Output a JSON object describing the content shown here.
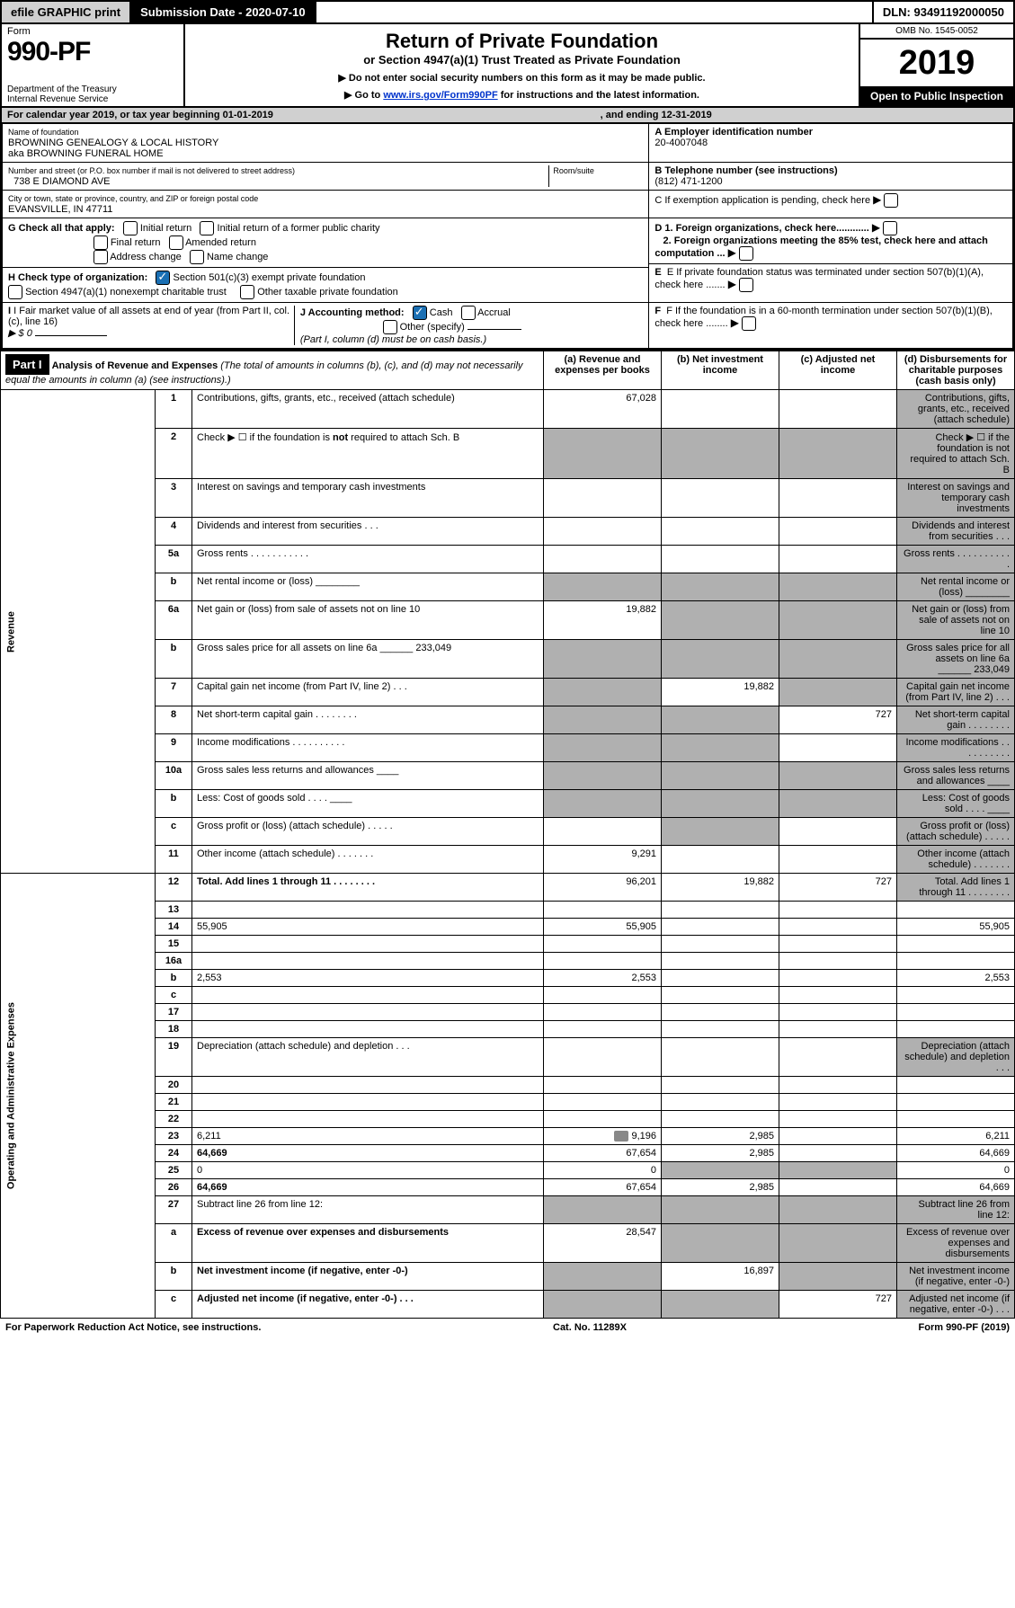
{
  "topbar": {
    "efile": "efile GRAPHIC print",
    "submission_label": "Submission Date - 2020-07-10",
    "dln": "DLN: 93491192000050"
  },
  "header": {
    "form_label": "Form",
    "form_number": "990-PF",
    "dept1": "Department of the Treasury",
    "dept2": "Internal Revenue Service",
    "title": "Return of Private Foundation",
    "subtitle": "or Section 4947(a)(1) Trust Treated as Private Foundation",
    "note1": "▶ Do not enter social security numbers on this form as it may be made public.",
    "note2_prefix": "▶ Go to ",
    "note2_link": "www.irs.gov/Form990PF",
    "note2_suffix": " for instructions and the latest information.",
    "omb": "OMB No. 1545-0052",
    "year": "2019",
    "inspection": "Open to Public Inspection"
  },
  "calendar": {
    "line": "For calendar year 2019, or tax year beginning 01-01-2019",
    "ending": ", and ending 12-31-2019"
  },
  "info": {
    "name_label": "Name of foundation",
    "name1": "BROWNING GENEALOGY & LOCAL HISTORY",
    "name2": "aka BROWNING FUNERAL HOME",
    "ein_label": "A Employer identification number",
    "ein": "20-4007048",
    "addr_label": "Number and street (or P.O. box number if mail is not delivered to street address)",
    "addr": "738 E DIAMOND AVE",
    "room_label": "Room/suite",
    "phone_label": "B Telephone number (see instructions)",
    "phone": "(812) 471-1200",
    "city_label": "City or town, state or province, country, and ZIP or foreign postal code",
    "city": "EVANSVILLE, IN  47711",
    "c_label": "C If exemption application is pending, check here",
    "g_label": "G Check all that apply:",
    "g_opts": [
      "Initial return",
      "Initial return of a former public charity",
      "Final return",
      "Amended return",
      "Address change",
      "Name change"
    ],
    "d1": "D 1. Foreign organizations, check here............",
    "d2": "2. Foreign organizations meeting the 85% test, check here and attach computation ...",
    "h_label": "H Check type of organization:",
    "h1": "Section 501(c)(3) exempt private foundation",
    "h2": "Section 4947(a)(1) nonexempt charitable trust",
    "h3": "Other taxable private foundation",
    "e_label": "E  If private foundation status was terminated under section 507(b)(1)(A), check here .......",
    "i_label": "I Fair market value of all assets at end of year (from Part II, col. (c), line 16)",
    "i_val": "▶ $  0",
    "j_label": "J Accounting method:",
    "j_cash": "Cash",
    "j_accrual": "Accrual",
    "j_other": "Other (specify)",
    "j_note": "(Part I, column (d) must be on cash basis.)",
    "f_label": "F  If the foundation is in a 60-month termination under section 507(b)(1)(B), check here ........"
  },
  "part1": {
    "header": "Part I",
    "title": "Analysis of Revenue and Expenses",
    "title_note": "(The total of amounts in columns (b), (c), and (d) may not necessarily equal the amounts in column (a) (see instructions).)",
    "col_a": "(a)    Revenue and expenses per books",
    "col_b": "(b)   Net investment income",
    "col_c": "(c)   Adjusted net income",
    "col_d": "(d)   Disbursements for charitable purposes (cash basis only)",
    "revenue_label": "Revenue",
    "expenses_label": "Operating and Administrative Expenses",
    "rows": [
      {
        "n": "1",
        "d": "Contributions, gifts, grants, etc., received (attach schedule)",
        "a": "67,028",
        "b": "",
        "c": "",
        "d_shade": true
      },
      {
        "n": "2",
        "d": "Check ▶ ☐ if the foundation is not required to attach Sch. B",
        "a_shade": true,
        "b_shade": true,
        "c_shade": true,
        "d_shade": true,
        "bold_not": true
      },
      {
        "n": "3",
        "d": "Interest on savings and temporary cash investments",
        "a": "",
        "b": "",
        "c": "",
        "d_shade": true
      },
      {
        "n": "4",
        "d": "Dividends and interest from securities   .  .  .",
        "a": "",
        "b": "",
        "c": "",
        "d_shade": true
      },
      {
        "n": "5a",
        "d": "Gross rents    .  .  .  .  .  .  .  .  .  .  .",
        "a": "",
        "b": "",
        "c": "",
        "d_shade": true
      },
      {
        "n": "b",
        "d": "Net rental income or (loss)  ________",
        "a_shade": true,
        "b_shade": true,
        "c_shade": true,
        "d_shade": true
      },
      {
        "n": "6a",
        "d": "Net gain or (loss) from sale of assets not on line 10",
        "a": "19,882",
        "b_shade": true,
        "c_shade": true,
        "d_shade": true
      },
      {
        "n": "b",
        "d": "Gross sales price for all assets on line 6a ______ 233,049",
        "a_shade": true,
        "b_shade": true,
        "c_shade": true,
        "d_shade": true
      },
      {
        "n": "7",
        "d": "Capital gain net income (from Part IV, line 2)   .  .  .",
        "a_shade": true,
        "b": "19,882",
        "c_shade": true,
        "d_shade": true
      },
      {
        "n": "8",
        "d": "Net short-term capital gain   .  .  .  .  .  .  .  .",
        "a_shade": true,
        "b_shade": true,
        "c": "727",
        "d_shade": true
      },
      {
        "n": "9",
        "d": "Income modifications  .  .  .  .  .  .  .  .  .  .",
        "a_shade": true,
        "b_shade": true,
        "c": "",
        "d_shade": true
      },
      {
        "n": "10a",
        "d": "Gross sales less returns and allowances  ____",
        "a_shade": true,
        "b_shade": true,
        "c_shade": true,
        "d_shade": true
      },
      {
        "n": "b",
        "d": "Less: Cost of goods sold    .  .  .  .  ____",
        "a_shade": true,
        "b_shade": true,
        "c_shade": true,
        "d_shade": true
      },
      {
        "n": "c",
        "d": "Gross profit or (loss) (attach schedule)    .  .  .  .  .",
        "a": "",
        "b_shade": true,
        "c": "",
        "d_shade": true
      },
      {
        "n": "11",
        "d": "Other income (attach schedule)    .  .  .  .  .  .  .",
        "a": "9,291",
        "b": "",
        "c": "",
        "d_shade": true
      },
      {
        "n": "12",
        "d": "Total. Add lines 1 through 11    .  .  .  .  .  .  .  .",
        "a": "96,201",
        "b": "19,882",
        "c": "727",
        "d_shade": true,
        "bold": true
      },
      {
        "n": "13",
        "d": "",
        "a": "",
        "b": "",
        "c": ""
      },
      {
        "n": "14",
        "d": "55,905",
        "a": "55,905",
        "b": "",
        "c": ""
      },
      {
        "n": "15",
        "d": "",
        "a": "",
        "b": "",
        "c": ""
      },
      {
        "n": "16a",
        "d": "",
        "a": "",
        "b": "",
        "c": ""
      },
      {
        "n": "b",
        "d": "2,553",
        "a": "2,553",
        "b": "",
        "c": ""
      },
      {
        "n": "c",
        "d": "",
        "a": "",
        "b": "",
        "c": ""
      },
      {
        "n": "17",
        "d": "",
        "a": "",
        "b": "",
        "c": ""
      },
      {
        "n": "18",
        "d": "",
        "a": "",
        "b": "",
        "c": ""
      },
      {
        "n": "19",
        "d": "Depreciation (attach schedule) and depletion    .  .  .",
        "a": "",
        "b": "",
        "c": "",
        "d_shade": true
      },
      {
        "n": "20",
        "d": "",
        "a": "",
        "b": "",
        "c": ""
      },
      {
        "n": "21",
        "d": "",
        "a": "",
        "b": "",
        "c": ""
      },
      {
        "n": "22",
        "d": "",
        "a": "",
        "b": "",
        "c": ""
      },
      {
        "n": "23",
        "d": "6,211",
        "a": "9,196",
        "b": "2,985",
        "c": "",
        "icon": true
      },
      {
        "n": "24",
        "d": "64,669",
        "a": "67,654",
        "b": "2,985",
        "c": "",
        "bold": true
      },
      {
        "n": "25",
        "d": "0",
        "a": "0",
        "b_shade": true,
        "c_shade": true
      },
      {
        "n": "26",
        "d": "64,669",
        "a": "67,654",
        "b": "2,985",
        "c": "",
        "bold": true
      },
      {
        "n": "27",
        "d": "Subtract line 26 from line 12:",
        "a_shade": true,
        "b_shade": true,
        "c_shade": true,
        "d_shade": true
      },
      {
        "n": "a",
        "d": "Excess of revenue over expenses and disbursements",
        "a": "28,547",
        "b_shade": true,
        "c_shade": true,
        "d_shade": true,
        "bold": true
      },
      {
        "n": "b",
        "d": "Net investment income (if negative, enter -0-)",
        "a_shade": true,
        "b": "16,897",
        "c_shade": true,
        "d_shade": true,
        "bold": true
      },
      {
        "n": "c",
        "d": "Adjusted net income (if negative, enter -0-)   .  .  .",
        "a_shade": true,
        "b_shade": true,
        "c": "727",
        "d_shade": true,
        "bold": true
      }
    ]
  },
  "footer": {
    "left": "For Paperwork Reduction Act Notice, see instructions.",
    "mid": "Cat. No. 11289X",
    "right": "Form 990-PF (2019)"
  }
}
